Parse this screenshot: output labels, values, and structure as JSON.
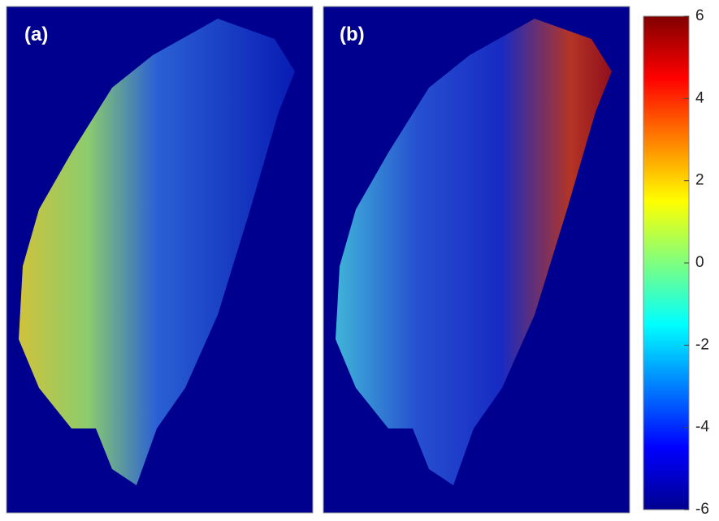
{
  "panels": [
    {
      "label": "(a)"
    },
    {
      "label": "(b)"
    }
  ],
  "colorbar": {
    "lim": [
      -6,
      6
    ],
    "ticks": [
      6,
      4,
      2,
      0,
      -2,
      -4,
      -6
    ]
  }
}
